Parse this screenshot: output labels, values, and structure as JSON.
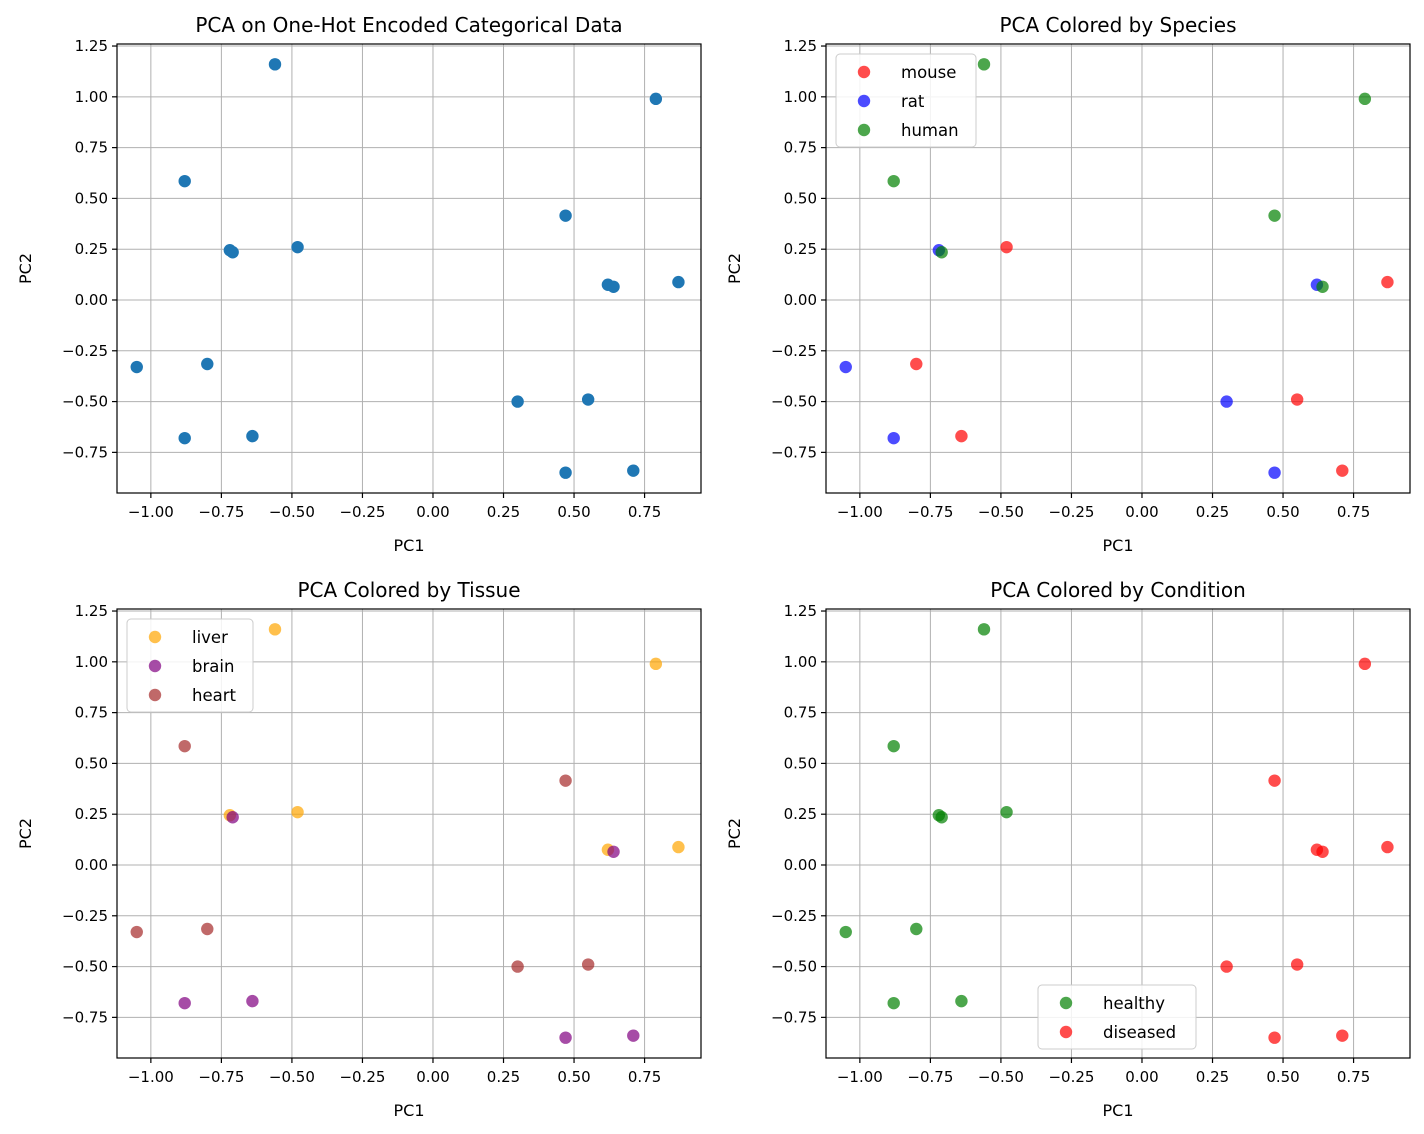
{
  "chart_data": [
    {
      "type": "scatter",
      "title": "PCA on One-Hot Encoded Categorical Data",
      "xlabel": "PC1",
      "ylabel": "PC2",
      "xlim": [
        -1.12,
        0.95
      ],
      "ylim": [
        -0.95,
        1.26
      ],
      "xticks": [
        -1.0,
        -0.75,
        -0.5,
        -0.25,
        0.0,
        0.25,
        0.5,
        0.75
      ],
      "xtick_labels": [
        "−1.00",
        "−0.75",
        "−0.50",
        "−0.25",
        "0.00",
        "0.25",
        "0.50",
        "0.75"
      ],
      "yticks": [
        -0.75,
        -0.5,
        -0.25,
        0.0,
        0.25,
        0.5,
        0.75,
        1.0,
        1.25
      ],
      "ytick_labels": [
        "−0.75",
        "−0.50",
        "−0.25",
        "0.00",
        "0.25",
        "0.50",
        "0.75",
        "1.00",
        "1.25"
      ],
      "grid": true,
      "legend": null,
      "series": [
        {
          "name": "",
          "color": "#1f77b4",
          "alpha": 1.0,
          "points": [
            [
              -0.56,
              1.16
            ],
            [
              0.79,
              0.99
            ],
            [
              -0.88,
              0.585
            ],
            [
              0.47,
              0.415
            ],
            [
              -0.48,
              0.26
            ],
            [
              -0.72,
              0.245
            ],
            [
              -0.71,
              0.235
            ],
            [
              0.62,
              0.075
            ],
            [
              0.64,
              0.065
            ],
            [
              0.87,
              0.088
            ],
            [
              -1.05,
              -0.33
            ],
            [
              -0.8,
              -0.315
            ],
            [
              0.3,
              -0.5
            ],
            [
              0.55,
              -0.49
            ],
            [
              -0.88,
              -0.68
            ],
            [
              -0.64,
              -0.67
            ],
            [
              0.47,
              -0.85
            ],
            [
              0.71,
              -0.84
            ]
          ]
        }
      ]
    },
    {
      "type": "scatter",
      "title": "PCA Colored by Species",
      "xlabel": "PC1",
      "ylabel": "PC2",
      "xlim": [
        -1.12,
        0.95
      ],
      "ylim": [
        -0.95,
        1.26
      ],
      "xticks": [
        -1.0,
        -0.75,
        -0.5,
        -0.25,
        0.0,
        0.25,
        0.5,
        0.75
      ],
      "xtick_labels": [
        "−1.00",
        "−0.75",
        "−0.50",
        "−0.25",
        "0.00",
        "0.25",
        "0.50",
        "0.75"
      ],
      "yticks": [
        -0.75,
        -0.5,
        -0.25,
        0.0,
        0.25,
        0.5,
        0.75,
        1.0,
        1.25
      ],
      "ytick_labels": [
        "−0.75",
        "−0.50",
        "−0.25",
        "0.00",
        "0.25",
        "0.50",
        "0.75",
        "1.00",
        "1.25"
      ],
      "grid": true,
      "legend": "upper-left",
      "series": [
        {
          "name": "mouse",
          "color": "#ff0000",
          "alpha": 0.7,
          "points": [
            [
              -0.48,
              0.26
            ],
            [
              0.87,
              0.088
            ],
            [
              -0.8,
              -0.315
            ],
            [
              0.55,
              -0.49
            ],
            [
              -0.64,
              -0.67
            ],
            [
              0.71,
              -0.84
            ]
          ]
        },
        {
          "name": "rat",
          "color": "#0000ff",
          "alpha": 0.7,
          "points": [
            [
              -0.72,
              0.245
            ],
            [
              0.62,
              0.075
            ],
            [
              -1.05,
              -0.33
            ],
            [
              0.3,
              -0.5
            ],
            [
              -0.88,
              -0.68
            ],
            [
              0.47,
              -0.85
            ]
          ]
        },
        {
          "name": "human",
          "color": "#008000",
          "alpha": 0.7,
          "points": [
            [
              -0.56,
              1.16
            ],
            [
              0.79,
              0.99
            ],
            [
              -0.88,
              0.585
            ],
            [
              0.47,
              0.415
            ],
            [
              -0.71,
              0.235
            ],
            [
              0.64,
              0.065
            ]
          ]
        }
      ]
    },
    {
      "type": "scatter",
      "title": "PCA Colored by Tissue",
      "xlabel": "PC1",
      "ylabel": "PC2",
      "xlim": [
        -1.12,
        0.95
      ],
      "ylim": [
        -0.95,
        1.26
      ],
      "xticks": [
        -1.0,
        -0.75,
        -0.5,
        -0.25,
        0.0,
        0.25,
        0.5,
        0.75
      ],
      "xtick_labels": [
        "−1.00",
        "−0.75",
        "−0.50",
        "−0.25",
        "0.00",
        "0.25",
        "0.50",
        "0.75"
      ],
      "yticks": [
        -0.75,
        -0.5,
        -0.25,
        0.0,
        0.25,
        0.5,
        0.75,
        1.0,
        1.25
      ],
      "ytick_labels": [
        "−0.75",
        "−0.50",
        "−0.25",
        "0.00",
        "0.25",
        "0.50",
        "0.75",
        "1.00",
        "1.25"
      ],
      "grid": true,
      "legend": "upper-left",
      "series": [
        {
          "name": "liver",
          "color": "#ffa500",
          "alpha": 0.7,
          "points": [
            [
              -0.56,
              1.16
            ],
            [
              0.79,
              0.99
            ],
            [
              -0.48,
              0.26
            ],
            [
              -0.72,
              0.245
            ],
            [
              0.62,
              0.075
            ],
            [
              0.87,
              0.088
            ]
          ]
        },
        {
          "name": "brain",
          "color": "#800080",
          "alpha": 0.7,
          "points": [
            [
              -0.71,
              0.235
            ],
            [
              0.64,
              0.065
            ],
            [
              -0.88,
              -0.68
            ],
            [
              -0.64,
              -0.67
            ],
            [
              0.47,
              -0.85
            ],
            [
              0.71,
              -0.84
            ]
          ]
        },
        {
          "name": "heart",
          "color": "#a52a2a",
          "alpha": 0.7,
          "points": [
            [
              -0.88,
              0.585
            ],
            [
              0.47,
              0.415
            ],
            [
              -1.05,
              -0.33
            ],
            [
              -0.8,
              -0.315
            ],
            [
              0.3,
              -0.5
            ],
            [
              0.55,
              -0.49
            ]
          ]
        }
      ]
    },
    {
      "type": "scatter",
      "title": "PCA Colored by Condition",
      "xlabel": "PC1",
      "ylabel": "PC2",
      "xlim": [
        -1.12,
        0.95
      ],
      "ylim": [
        -0.95,
        1.26
      ],
      "xticks": [
        -1.0,
        -0.75,
        -0.5,
        -0.25,
        0.0,
        0.25,
        0.5,
        0.75
      ],
      "xtick_labels": [
        "−1.00",
        "−0.75",
        "−0.50",
        "−0.25",
        "0.00",
        "0.25",
        "0.50",
        "0.75"
      ],
      "yticks": [
        -0.75,
        -0.5,
        -0.25,
        0.0,
        0.25,
        0.5,
        0.75,
        1.0,
        1.25
      ],
      "ytick_labels": [
        "−0.75",
        "−0.50",
        "−0.25",
        "0.00",
        "0.25",
        "0.50",
        "0.75",
        "1.00",
        "1.25"
      ],
      "grid": true,
      "legend": "lower-center",
      "series": [
        {
          "name": "healthy",
          "color": "#008000",
          "alpha": 0.7,
          "points": [
            [
              -0.56,
              1.16
            ],
            [
              -0.88,
              0.585
            ],
            [
              -0.48,
              0.26
            ],
            [
              -0.72,
              0.245
            ],
            [
              -0.71,
              0.235
            ],
            [
              -1.05,
              -0.33
            ],
            [
              -0.8,
              -0.315
            ],
            [
              -0.88,
              -0.68
            ],
            [
              -0.64,
              -0.67
            ]
          ]
        },
        {
          "name": "diseased",
          "color": "#ff0000",
          "alpha": 0.7,
          "points": [
            [
              0.79,
              0.99
            ],
            [
              0.47,
              0.415
            ],
            [
              0.62,
              0.075
            ],
            [
              0.64,
              0.065
            ],
            [
              0.87,
              0.088
            ],
            [
              0.3,
              -0.5
            ],
            [
              0.55,
              -0.49
            ],
            [
              0.47,
              -0.85
            ],
            [
              0.71,
              -0.84
            ]
          ]
        }
      ]
    }
  ]
}
